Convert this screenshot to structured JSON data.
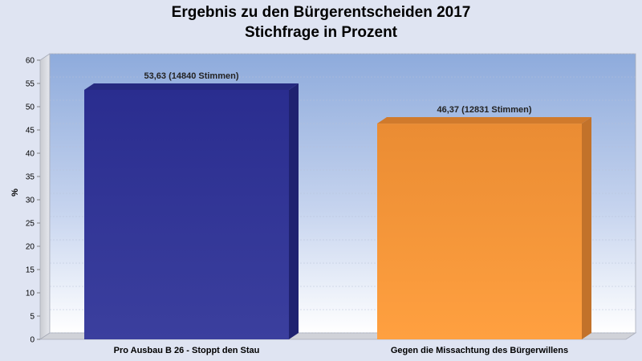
{
  "chart_data": {
    "type": "bar",
    "title": "Ergebnis zu den Bürgerentscheiden 2017",
    "subtitle": "Stichfrage in Prozent",
    "xlabel": "",
    "ylabel": "%",
    "ylim": [
      0,
      60
    ],
    "y_ticks": [
      0,
      5,
      10,
      15,
      20,
      25,
      30,
      35,
      40,
      45,
      50,
      55,
      60
    ],
    "grid": true,
    "legend": "none",
    "categories": [
      "Pro Ausbau B 26 - Stoppt den Stau",
      "Gegen die Missachtung des Bürgerwillens"
    ],
    "values": [
      53.63,
      46.37
    ],
    "data_labels": [
      "53,63 (14840 Stimmen)",
      "46,37 (12831 Stimmen)"
    ],
    "colors": [
      "#2e3296",
      "#f7932e"
    ]
  }
}
